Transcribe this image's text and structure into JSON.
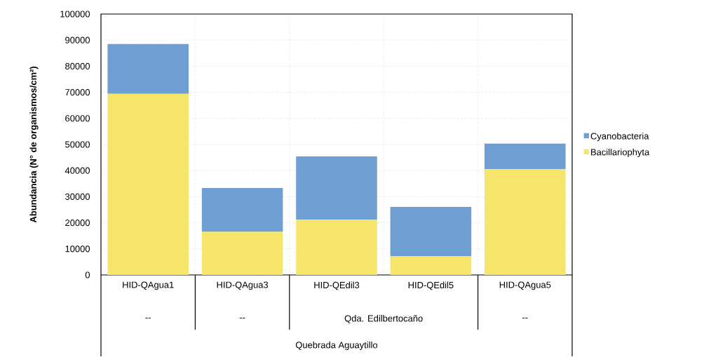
{
  "chart_data": {
    "type": "bar",
    "stacked": true,
    "ylabel": "Abundancia (N° de organismos/cm²)",
    "categories": [
      "HID-QAgua1",
      "HID-QAgua3",
      "HID-QEdil3",
      "HID-QEdil5",
      "HID-QAgua5"
    ],
    "series": [
      {
        "name": "Bacillariophyta",
        "color": "#f5e56b",
        "values": [
          69400,
          16500,
          21200,
          7100,
          40600
        ]
      },
      {
        "name": "Cyanobacteria",
        "color": "#6f9fd2",
        "values": [
          19100,
          16800,
          24200,
          19000,
          9700
        ]
      }
    ],
    "ylim": [
      0,
      100000
    ],
    "yticks": [
      0,
      10000,
      20000,
      30000,
      40000,
      50000,
      60000,
      70000,
      80000,
      90000,
      100000
    ],
    "grid": true,
    "legend": "right",
    "annotations": [
      "--",
      "--",
      "Qda. Edilbertocaño",
      "--",
      "Quebrada Aguaytillo"
    ]
  }
}
